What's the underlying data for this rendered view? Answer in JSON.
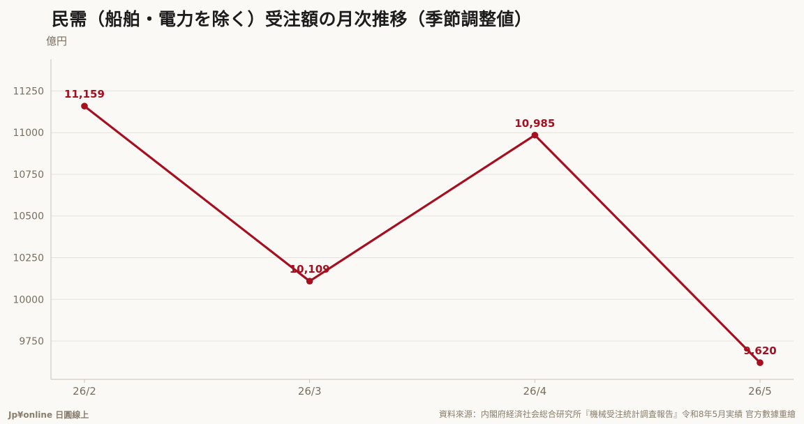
{
  "header": {
    "title": "民需（船舶・電力を除く）受注額の月次推移（季節調整値）",
    "unit": "億円"
  },
  "footer": {
    "brand": "Jp¥online 日圓線上",
    "source": "資料來源：内閣府経済社会総合研究所『機械受注統計調査報告』令和8年5月実績 官方數據重繪"
  },
  "colors": {
    "line": "#a50f20",
    "grid": "#e6e2da",
    "axis": "#c9c3b8",
    "tick_text": "#7a6e5e"
  },
  "chart_data": {
    "type": "line",
    "title": "民需（船舶・電力を除く）受注額の月次推移（季節調整値）",
    "xlabel": "",
    "ylabel": "億円",
    "categories": [
      "26/2",
      "26/3",
      "26/4",
      "26/5"
    ],
    "series": [
      {
        "values": [
          11159,
          10109,
          10985,
          9620
        ],
        "labels": [
          "11,159",
          "10,109",
          "10,985",
          "9,620"
        ]
      }
    ],
    "ylim": [
      9520,
      11440
    ],
    "yticks": [
      9750,
      10000,
      10250,
      10500,
      10750,
      11000,
      11250
    ],
    "grid": true,
    "legend": "none"
  }
}
